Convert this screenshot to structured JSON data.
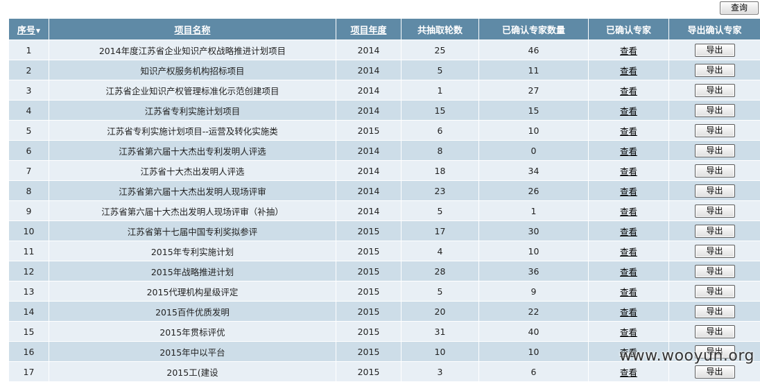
{
  "toolbar": {
    "query_label": "查询"
  },
  "table": {
    "headers": [
      "序号",
      "项目名称",
      "项目年度",
      "共抽取轮数",
      "已确认专家数量",
      "已确认专家",
      "导出确认专家"
    ],
    "view_label": "查看",
    "export_label": "导出",
    "rows": [
      {
        "no": "1",
        "name": "2014年度江苏省企业知识产权战略推进计划项目",
        "year": "2014",
        "rounds": "25",
        "confirmed": "46"
      },
      {
        "no": "2",
        "name": "知识产权服务机构招标项目",
        "year": "2014",
        "rounds": "5",
        "confirmed": "11"
      },
      {
        "no": "3",
        "name": "江苏省企业知识产权管理标准化示范创建项目",
        "year": "2014",
        "rounds": "1",
        "confirmed": "27"
      },
      {
        "no": "4",
        "name": "江苏省专利实施计划项目",
        "year": "2014",
        "rounds": "15",
        "confirmed": "15"
      },
      {
        "no": "5",
        "name": "江苏省专利实施计划项目--运营及转化实施类",
        "year": "2015",
        "rounds": "6",
        "confirmed": "10"
      },
      {
        "no": "6",
        "name": "江苏省第六届十大杰出专利发明人评选",
        "year": "2014",
        "rounds": "8",
        "confirmed": "0"
      },
      {
        "no": "7",
        "name": "江苏省十大杰出发明人评选",
        "year": "2014",
        "rounds": "18",
        "confirmed": "34"
      },
      {
        "no": "8",
        "name": "江苏省第六届十大杰出发明人现场评审",
        "year": "2014",
        "rounds": "23",
        "confirmed": "26"
      },
      {
        "no": "9",
        "name": "江苏省第六届十大杰出发明人现场评审（补抽）",
        "year": "2014",
        "rounds": "5",
        "confirmed": "1"
      },
      {
        "no": "10",
        "name": "江苏省第十七届中国专利奖拟参评",
        "year": "2015",
        "rounds": "17",
        "confirmed": "30"
      },
      {
        "no": "11",
        "name": "2015年专利实施计划",
        "year": "2015",
        "rounds": "4",
        "confirmed": "10"
      },
      {
        "no": "12",
        "name": "2015年战略推进计划",
        "year": "2015",
        "rounds": "28",
        "confirmed": "36"
      },
      {
        "no": "13",
        "name": "2015代理机构星级评定",
        "year": "2015",
        "rounds": "5",
        "confirmed": "9"
      },
      {
        "no": "14",
        "name": "2015百件优质发明",
        "year": "2015",
        "rounds": "20",
        "confirmed": "22"
      },
      {
        "no": "15",
        "name": "2015年贯标评优",
        "year": "2015",
        "rounds": "31",
        "confirmed": "40"
      },
      {
        "no": "16",
        "name": "2015年中以平台",
        "year": "2015",
        "rounds": "10",
        "confirmed": "10"
      },
      {
        "no": "17",
        "name": "2015工(建设",
        "year": "2015",
        "rounds": "3",
        "confirmed": "6"
      }
    ]
  },
  "watermark": "www.wooyun.org"
}
